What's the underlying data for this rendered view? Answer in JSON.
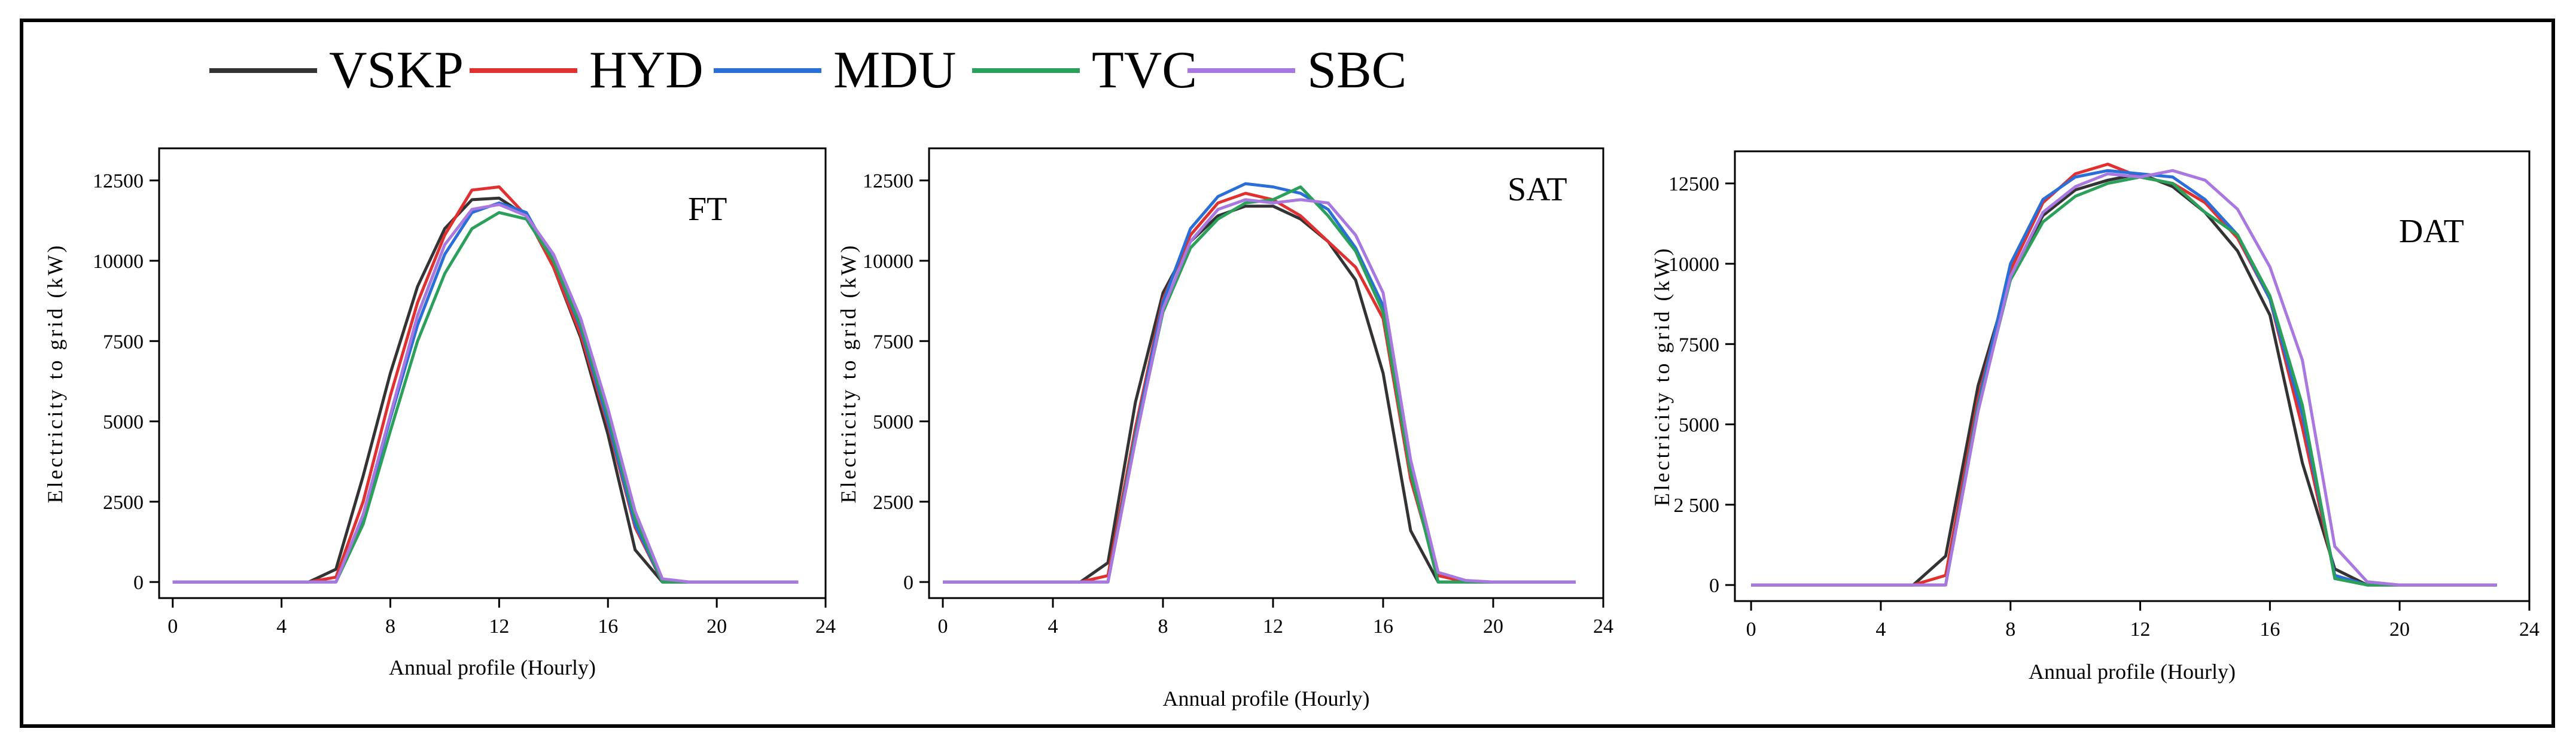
{
  "legend": {
    "items": [
      {
        "name": "VSKP",
        "color": "#333333"
      },
      {
        "name": "HYD",
        "color": "#e03030"
      },
      {
        "name": "MDU",
        "color": "#2a6ed8"
      },
      {
        "name": "TVC",
        "color": "#2aa05a"
      },
      {
        "name": "SBC",
        "color": "#a878e0"
      }
    ]
  },
  "chart_data": [
    {
      "type": "line",
      "title": "FT",
      "xlabel": "Annual profile (Hourly)",
      "ylabel": "Electricity to grid (kW)",
      "xlim": [
        -0.5,
        24
      ],
      "ylim": [
        -500,
        13500
      ],
      "xticks": [
        0,
        4,
        8,
        12,
        16,
        20,
        24
      ],
      "yticks": [
        0,
        2500,
        5000,
        7500,
        10000,
        12500
      ],
      "ytick_labels": [
        "0",
        "2500",
        "5000",
        "7500",
        "10000",
        "12500"
      ],
      "x": [
        0,
        1,
        2,
        3,
        4,
        5,
        6,
        7,
        8,
        9,
        10,
        11,
        12,
        13,
        14,
        15,
        16,
        17,
        18,
        19,
        20,
        21,
        22,
        23
      ],
      "series": [
        {
          "name": "VSKP",
          "color": "#333333",
          "values": [
            0,
            0,
            0,
            0,
            0,
            0,
            400,
            3300,
            6500,
            9200,
            11000,
            11900,
            11950,
            11400,
            9800,
            7600,
            4600,
            1000,
            0,
            0,
            0,
            0,
            0,
            0
          ]
        },
        {
          "name": "HYD",
          "color": "#e03030",
          "values": [
            0,
            0,
            0,
            0,
            0,
            0,
            150,
            2500,
            5800,
            8700,
            10800,
            12200,
            12300,
            11400,
            9800,
            7700,
            4900,
            1700,
            0,
            0,
            0,
            0,
            0,
            0
          ]
        },
        {
          "name": "MDU",
          "color": "#2a6ed8",
          "values": [
            0,
            0,
            0,
            0,
            0,
            0,
            0,
            2000,
            5100,
            8000,
            10200,
            11500,
            11800,
            11500,
            10000,
            7900,
            5000,
            1800,
            0,
            0,
            0,
            0,
            0,
            0
          ]
        },
        {
          "name": "TVC",
          "color": "#2aa05a",
          "values": [
            0,
            0,
            0,
            0,
            0,
            0,
            0,
            1800,
            4700,
            7500,
            9600,
            11000,
            11500,
            11300,
            10000,
            8000,
            5200,
            2000,
            0,
            0,
            0,
            0,
            0,
            0
          ]
        },
        {
          "name": "SBC",
          "color": "#a878e0",
          "values": [
            0,
            0,
            0,
            0,
            0,
            0,
            0,
            2100,
            5200,
            8300,
            10500,
            11600,
            11750,
            11400,
            10200,
            8200,
            5400,
            2200,
            100,
            0,
            0,
            0,
            0,
            0
          ]
        }
      ]
    },
    {
      "type": "line",
      "title": "SAT",
      "xlabel": "Annual profile (Hourly)",
      "ylabel": "Electricity to grid (kW)",
      "xlim": [
        -0.5,
        24
      ],
      "ylim": [
        -500,
        13500
      ],
      "xticks": [
        0,
        4,
        8,
        12,
        16,
        20,
        24
      ],
      "yticks": [
        0,
        2500,
        5000,
        7500,
        10000,
        12500
      ],
      "ytick_labels": [
        "0",
        "2500",
        "5000",
        "7500",
        "10000",
        "12500"
      ],
      "x": [
        0,
        1,
        2,
        3,
        4,
        5,
        6,
        7,
        8,
        9,
        10,
        11,
        12,
        13,
        14,
        15,
        16,
        17,
        18,
        19,
        20,
        21,
        22,
        23
      ],
      "series": [
        {
          "name": "VSKP",
          "color": "#333333",
          "values": [
            0,
            0,
            0,
            0,
            0,
            0,
            600,
            5600,
            9000,
            10600,
            11400,
            11700,
            11700,
            11300,
            10600,
            9400,
            6500,
            1600,
            0,
            0,
            0,
            0,
            0,
            0
          ]
        },
        {
          "name": "HYD",
          "color": "#e03030",
          "values": [
            0,
            0,
            0,
            0,
            0,
            0,
            200,
            4800,
            8800,
            10800,
            11800,
            12100,
            11900,
            11400,
            10600,
            9800,
            8200,
            3200,
            200,
            0,
            0,
            0,
            0,
            0
          ]
        },
        {
          "name": "MDU",
          "color": "#2a6ed8",
          "values": [
            0,
            0,
            0,
            0,
            0,
            0,
            0,
            4600,
            8700,
            11000,
            12000,
            12400,
            12300,
            12100,
            11600,
            10400,
            8600,
            3600,
            0,
            0,
            0,
            0,
            0,
            0
          ]
        },
        {
          "name": "TVC",
          "color": "#2aa05a",
          "values": [
            0,
            0,
            0,
            0,
            0,
            0,
            0,
            4500,
            8400,
            10400,
            11300,
            11800,
            11900,
            12300,
            11400,
            10300,
            8400,
            3400,
            0,
            0,
            0,
            0,
            0,
            0
          ]
        },
        {
          "name": "SBC",
          "color": "#a878e0",
          "values": [
            0,
            0,
            0,
            0,
            0,
            0,
            0,
            4400,
            8500,
            10600,
            11600,
            11900,
            11800,
            11900,
            11800,
            10800,
            9000,
            3800,
            300,
            50,
            0,
            0,
            0,
            0
          ]
        }
      ]
    },
    {
      "type": "line",
      "title": "DAT",
      "xlabel": "Annual profile (Hourly)",
      "ylabel": "Electricity to grid (kW)",
      "xlim": [
        -0.5,
        24
      ],
      "ylim": [
        -500,
        13500
      ],
      "xticks": [
        0,
        4,
        8,
        12,
        16,
        20,
        24
      ],
      "yticks": [
        0,
        2500,
        5000,
        7500,
        10000,
        12500
      ],
      "ytick_labels": [
        "0",
        "2 500",
        "5000",
        "7500",
        "10000",
        "12500"
      ],
      "x": [
        0,
        1,
        2,
        3,
        4,
        5,
        6,
        7,
        8,
        9,
        10,
        11,
        12,
        13,
        14,
        15,
        16,
        17,
        18,
        19,
        20,
        21,
        22,
        23
      ],
      "series": [
        {
          "name": "VSKP",
          "color": "#333333",
          "values": [
            0,
            0,
            0,
            0,
            0,
            0,
            900,
            6200,
            9600,
            11500,
            12300,
            12600,
            12800,
            12400,
            11600,
            10400,
            8400,
            3800,
            500,
            0,
            0,
            0,
            0,
            0
          ]
        },
        {
          "name": "HYD",
          "color": "#e03030",
          "values": [
            0,
            0,
            0,
            0,
            0,
            0,
            300,
            5800,
            9800,
            11900,
            12800,
            13100,
            12700,
            12500,
            11900,
            10800,
            8900,
            4900,
            300,
            0,
            0,
            0,
            0,
            0
          ]
        },
        {
          "name": "MDU",
          "color": "#2a6ed8",
          "values": [
            0,
            0,
            0,
            0,
            0,
            0,
            0,
            5600,
            10000,
            12000,
            12700,
            12900,
            12800,
            12700,
            12000,
            10900,
            8900,
            5300,
            300,
            0,
            0,
            0,
            0,
            0
          ]
        },
        {
          "name": "TVC",
          "color": "#2aa05a",
          "values": [
            0,
            0,
            0,
            0,
            0,
            0,
            0,
            5500,
            9500,
            11300,
            12100,
            12500,
            12700,
            12500,
            11600,
            10900,
            9000,
            5600,
            200,
            0,
            0,
            0,
            0,
            0
          ]
        },
        {
          "name": "SBC",
          "color": "#a878e0",
          "values": [
            0,
            0,
            0,
            0,
            0,
            0,
            0,
            5400,
            9600,
            11600,
            12400,
            12800,
            12700,
            12900,
            12600,
            11700,
            9900,
            7000,
            1200,
            100,
            0,
            0,
            0,
            0
          ]
        }
      ]
    }
  ]
}
